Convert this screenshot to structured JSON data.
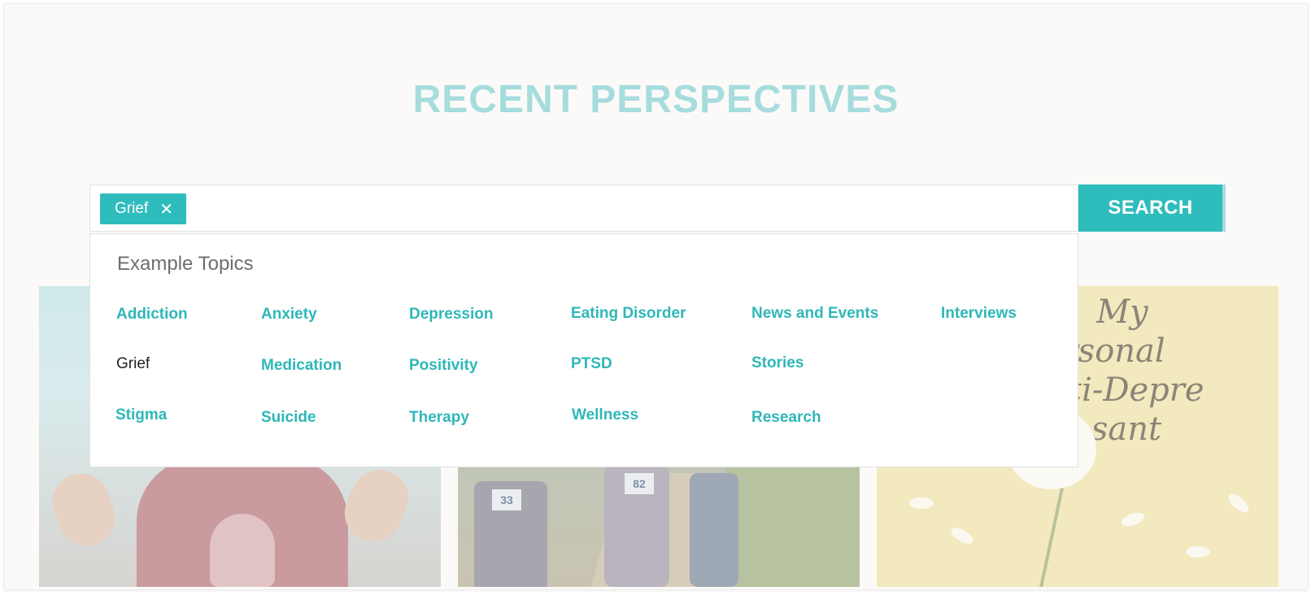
{
  "page": {
    "title": "RECENT PERSPECTIVES"
  },
  "search": {
    "selected_chip": "Grief",
    "chip_close_glyph": "✕",
    "button_label": "SEARCH"
  },
  "dropdown": {
    "heading": "Example Topics",
    "topics": [
      "Addiction",
      "Anxiety",
      "Depression",
      "Eating Disorder",
      "News and Events",
      "Interviews",
      "Grief",
      "Medication",
      "Positivity",
      "PTSD",
      "Stories",
      "Stigma",
      "Suicide",
      "Therapy",
      "Wellness",
      "Research"
    ]
  },
  "cards": {
    "card3_text": [
      "My",
      "personal",
      "Anti-Depre",
      "sant"
    ],
    "bibs": [
      "33",
      "82"
    ]
  },
  "colors": {
    "accent": "#2fbcbd",
    "title": "#a6dcdd"
  }
}
